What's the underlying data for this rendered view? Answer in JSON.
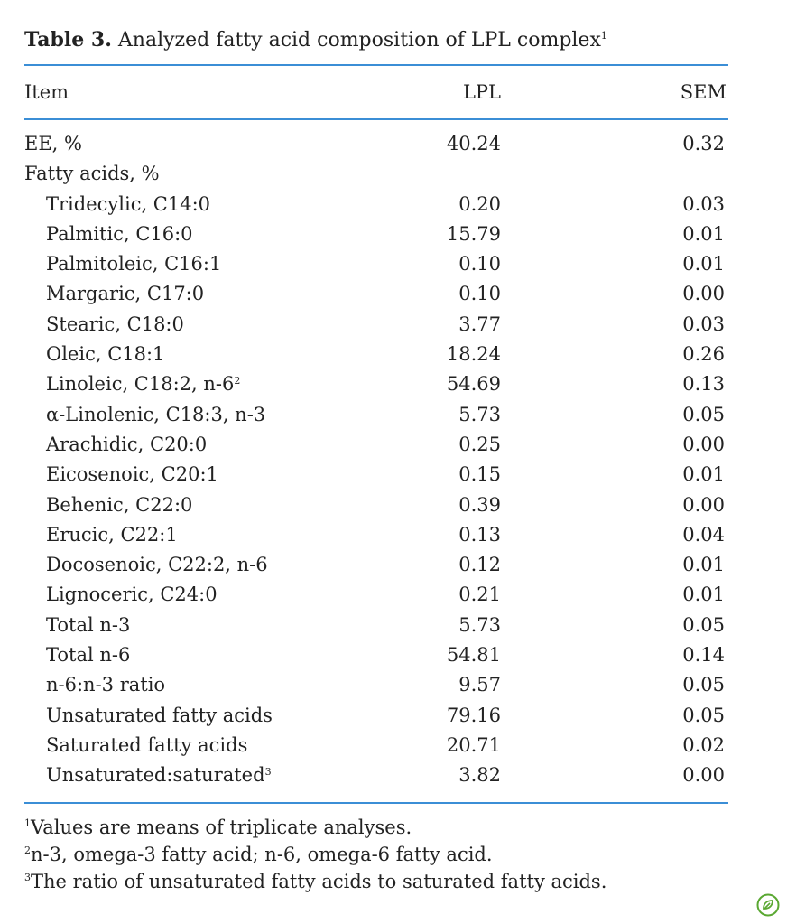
{
  "caption": {
    "label": "Table 3.",
    "text": "Analyzed fatty acid composition of LPL complex",
    "note": "1"
  },
  "headers": {
    "item": "Item",
    "lpl": "LPL",
    "sem": "SEM"
  },
  "rows": [
    {
      "item": "EE, %",
      "note": "",
      "lpl": "40.24",
      "sem": "0.32",
      "indent": false
    },
    {
      "item": "Fatty acids, %",
      "note": "",
      "lpl": "",
      "sem": "",
      "indent": false
    },
    {
      "item": "Tridecylic, C14:0",
      "note": "",
      "lpl": "0.20",
      "sem": "0.03",
      "indent": true
    },
    {
      "item": "Palmitic, C16:0",
      "note": "",
      "lpl": "15.79",
      "sem": "0.01",
      "indent": true
    },
    {
      "item": "Palmitoleic, C16:1",
      "note": "",
      "lpl": "0.10",
      "sem": "0.01",
      "indent": true
    },
    {
      "item": "Margaric, C17:0",
      "note": "",
      "lpl": "0.10",
      "sem": "0.00",
      "indent": true
    },
    {
      "item": "Stearic, C18:0",
      "note": "",
      "lpl": "3.77",
      "sem": "0.03",
      "indent": true
    },
    {
      "item": "Oleic, C18:1",
      "note": "",
      "lpl": "18.24",
      "sem": "0.26",
      "indent": true
    },
    {
      "item": "Linoleic, C18:2, n-6",
      "note": "2",
      "lpl": "54.69",
      "sem": "0.13",
      "indent": true
    },
    {
      "item": "α-Linolenic, C18:3, n-3",
      "note": "",
      "lpl": "5.73",
      "sem": "0.05",
      "indent": true
    },
    {
      "item": "Arachidic, C20:0",
      "note": "",
      "lpl": "0.25",
      "sem": "0.00",
      "indent": true
    },
    {
      "item": "Eicosenoic, C20:1",
      "note": "",
      "lpl": "0.15",
      "sem": "0.01",
      "indent": true
    },
    {
      "item": "Behenic, C22:0",
      "note": "",
      "lpl": "0.39",
      "sem": "0.00",
      "indent": true
    },
    {
      "item": "Erucic, C22:1",
      "note": "",
      "lpl": "0.13",
      "sem": "0.04",
      "indent": true
    },
    {
      "item": "Docosenoic, C22:2, n-6",
      "note": "",
      "lpl": "0.12",
      "sem": "0.01",
      "indent": true
    },
    {
      "item": "Lignoceric, C24:0",
      "note": "",
      "lpl": "0.21",
      "sem": "0.01",
      "indent": true
    },
    {
      "item": "Total n-3",
      "note": "",
      "lpl": "5.73",
      "sem": "0.05",
      "indent": true
    },
    {
      "item": "Total n-6",
      "note": "",
      "lpl": "54.81",
      "sem": "0.14",
      "indent": true
    },
    {
      "item": "n-6:n-3 ratio",
      "note": "",
      "lpl": "9.57",
      "sem": "0.05",
      "indent": true
    },
    {
      "item": "Unsaturated fatty acids",
      "note": "",
      "lpl": "79.16",
      "sem": "0.05",
      "indent": true
    },
    {
      "item": "Saturated fatty acids",
      "note": "",
      "lpl": "20.71",
      "sem": "0.02",
      "indent": true
    },
    {
      "item": "Unsaturated:saturated",
      "note": "3",
      "lpl": "3.82",
      "sem": "0.00",
      "indent": true
    }
  ],
  "footnotes": [
    {
      "mark": "1",
      "text": "Values are means of triplicate analyses."
    },
    {
      "mark": "2",
      "text": "n-3, omega-3 fatty acid; n-6, omega-6 fatty acid."
    },
    {
      "mark": "3",
      "text": "The ratio of unsaturated fatty acids to saturated fatty acids."
    }
  ],
  "colors": {
    "rule": "#3b8ed6",
    "text": "#222222",
    "icon": "#5aa832"
  },
  "icons": {
    "corner": "leaf-badge-icon"
  }
}
